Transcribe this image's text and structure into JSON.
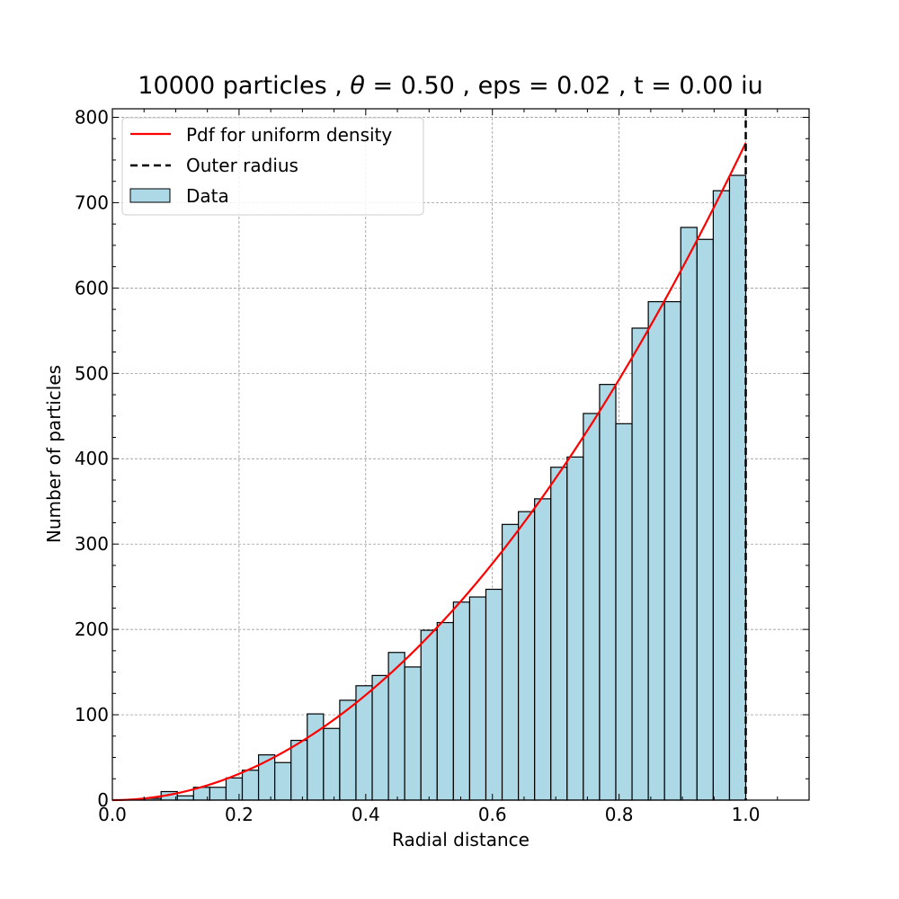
{
  "chart_data": {
    "type": "bar",
    "title_parts": {
      "lead": "10000 particles , ",
      "symbol": "θ",
      "rest": " = 0.50 , eps = 0.02 , t = 0.00 iu"
    },
    "xlabel": "Radial distance",
    "ylabel": "Number of particles",
    "xlim": [
      0.0,
      1.1
    ],
    "ylim": [
      0,
      810
    ],
    "xticks": [
      "0.0",
      "0.2",
      "0.4",
      "0.6",
      "0.8",
      "1.0"
    ],
    "yticks": [
      "0",
      "100",
      "200",
      "300",
      "400",
      "500",
      "600",
      "700",
      "800"
    ],
    "grid": true,
    "legend_position": "top-left",
    "histogram": {
      "name": "Data",
      "bin_start": 0.0,
      "bin_width": 0.02564,
      "values": [
        0,
        1,
        2,
        10,
        5,
        15,
        15,
        26,
        35,
        53,
        44,
        70,
        101,
        84,
        117,
        134,
        146,
        173,
        156,
        199,
        208,
        232,
        238,
        247,
        323,
        338,
        353,
        390,
        402,
        453,
        487,
        441,
        553,
        584,
        584,
        671,
        657,
        714,
        732
      ],
      "fill_color": "#add8e6",
      "edge_color": "#000000"
    },
    "pdf_curve": {
      "name": "Pdf for uniform density",
      "formula": "770 * x^2",
      "amplitude": 770,
      "x_range": [
        0.0,
        1.0
      ],
      "color": "#ff0000"
    },
    "outer_radius": {
      "name": "Outer radius",
      "x": 1.0,
      "color": "#000000"
    }
  }
}
